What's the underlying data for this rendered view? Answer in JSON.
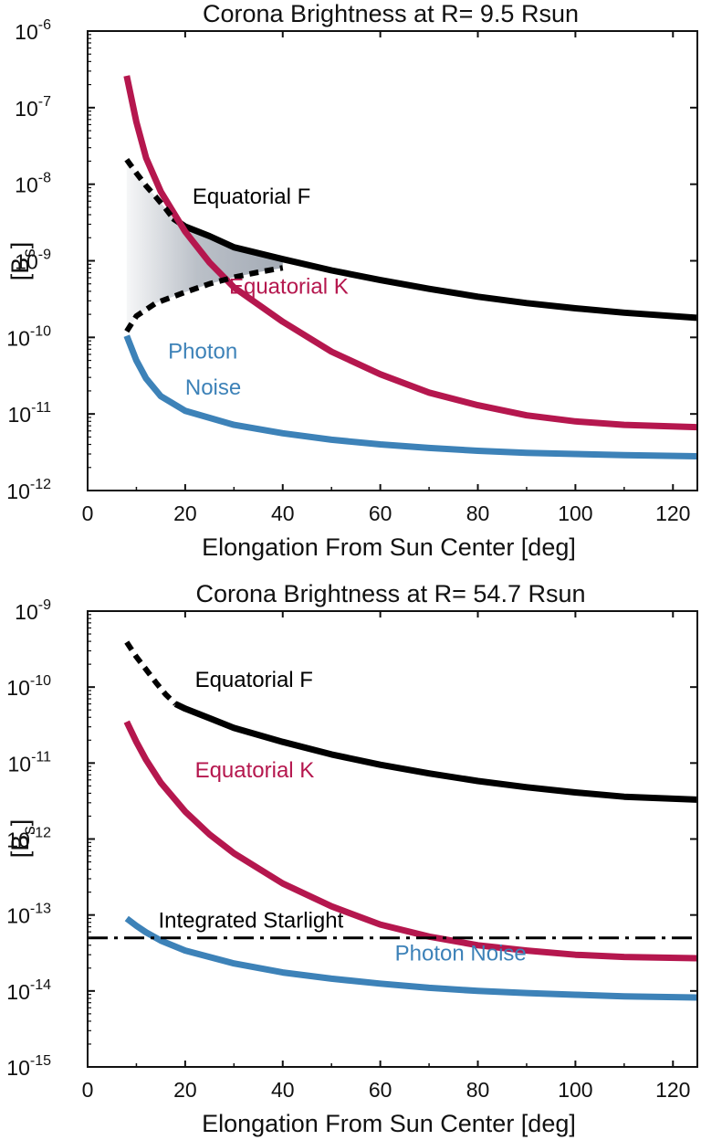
{
  "chart_data": [
    {
      "type": "line",
      "title": "Corona Brightness at R= 9.5 Rsun",
      "xlabel": "Elongation From Sun Center [deg]",
      "ylabel_main": "[B",
      "ylabel_sub": "s",
      "ylabel_close": "]",
      "xlim": [
        0,
        125
      ],
      "ylim_log10": [
        -12,
        -6
      ],
      "yscale": "log",
      "grid": false,
      "x_ticks": [
        "0",
        "20",
        "40",
        "60",
        "80",
        "100",
        "120"
      ],
      "y_tick_base": "10",
      "y_tick_exponents": [
        "-12",
        "-11",
        "-10",
        "-9",
        "-8",
        "-7",
        "-6"
      ],
      "series": [
        {
          "name": "Equatorial F",
          "color": "#000000",
          "style": "solid",
          "points": [
            [
              17.5,
              3.6e-09
            ],
            [
              20,
              2.8e-09
            ],
            [
              25,
              2.1e-09
            ],
            [
              30,
              1.5e-09
            ],
            [
              40,
              1.05e-09
            ],
            [
              50,
              7.5e-10
            ],
            [
              60,
              5.6e-10
            ],
            [
              70,
              4.3e-10
            ],
            [
              80,
              3.4e-10
            ],
            [
              90,
              2.8e-10
            ],
            [
              100,
              2.4e-10
            ],
            [
              110,
              2.1e-10
            ],
            [
              125,
              1.8e-10
            ]
          ]
        },
        {
          "name": "Equatorial K",
          "color": "#b5174e",
          "style": "solid",
          "points": [
            [
              8,
              2.6e-07
            ],
            [
              10,
              6.5e-08
            ],
            [
              12,
              2.2e-08
            ],
            [
              15,
              8e-09
            ],
            [
              20,
              2.4e-09
            ],
            [
              25,
              9.5e-10
            ],
            [
              30,
              4.5e-10
            ],
            [
              40,
              1.6e-10
            ],
            [
              50,
              6.5e-11
            ],
            [
              60,
              3.3e-11
            ],
            [
              70,
              1.9e-11
            ],
            [
              80,
              1.3e-11
            ],
            [
              90,
              9.6e-12
            ],
            [
              100,
              8e-12
            ],
            [
              110,
              7.2e-12
            ],
            [
              125,
              6.7e-12
            ]
          ]
        },
        {
          "name": "Photon Noise",
          "color": "#3d82b8",
          "style": "solid",
          "points": [
            [
              8,
              1.05e-10
            ],
            [
              10,
              5e-11
            ],
            [
              12,
              2.9e-11
            ],
            [
              15,
              1.7e-11
            ],
            [
              20,
              1.1e-11
            ],
            [
              30,
              7.2e-12
            ],
            [
              40,
              5.6e-12
            ],
            [
              50,
              4.6e-12
            ],
            [
              60,
              4e-12
            ],
            [
              70,
              3.6e-12
            ],
            [
              80,
              3.3e-12
            ],
            [
              90,
              3.1e-12
            ],
            [
              100,
              3e-12
            ],
            [
              110,
              2.9e-12
            ],
            [
              125,
              2.8e-12
            ]
          ]
        },
        {
          "name": "",
          "color": "#000000",
          "style": "dashed",
          "points": [
            [
              8,
              2.1e-08
            ],
            [
              10,
              1.4e-08
            ],
            [
              12,
              9.5e-09
            ],
            [
              14,
              6.8e-09
            ],
            [
              16,
              4.8e-09
            ],
            [
              17.5,
              3.6e-09
            ]
          ]
        },
        {
          "name": "",
          "color": "#000000",
          "style": "dashed",
          "points": [
            [
              8,
              1.2e-10
            ],
            [
              10,
              1.9e-10
            ],
            [
              14,
              2.8e-10
            ],
            [
              20,
              3.9e-10
            ],
            [
              25,
              5e-10
            ],
            [
              30,
              6.1e-10
            ],
            [
              35,
              7.1e-10
            ],
            [
              40,
              8.1e-10
            ]
          ]
        }
      ],
      "annotations": [
        {
          "text": "Equatorial F",
          "x": 21.5,
          "y": 5.6e-09,
          "color": "#000000"
        },
        {
          "text": "Equatorial K",
          "x": 29,
          "y": 3.7e-10,
          "color": "#b5174e"
        },
        {
          "text": "Photon",
          "x": 16.5,
          "y": 5.3e-11,
          "color": "#3d82b8"
        },
        {
          "text": "Noise",
          "x": 20,
          "y": 1.8e-11,
          "color": "#3d82b8"
        }
      ]
    },
    {
      "type": "line",
      "title": "Corona Brightness at R= 54.7 Rsun",
      "xlabel": "Elongation From Sun Center [deg]",
      "ylabel_main": "[B",
      "ylabel_sub": "s",
      "ylabel_close": "]",
      "xlim": [
        0,
        125
      ],
      "ylim_log10": [
        -15,
        -9
      ],
      "yscale": "log",
      "grid": false,
      "x_ticks": [
        "0",
        "20",
        "40",
        "60",
        "80",
        "100",
        "120"
      ],
      "y_tick_base": "10",
      "y_tick_exponents": [
        "-15",
        "-14",
        "-13",
        "-12",
        "-11",
        "-10",
        "-9"
      ],
      "series": [
        {
          "name": "Equatorial F",
          "color": "#000000",
          "style": "solid",
          "points": [
            [
              18,
              6e-11
            ],
            [
              20,
              5.2e-11
            ],
            [
              25,
              3.9e-11
            ],
            [
              30,
              2.9e-11
            ],
            [
              40,
              1.9e-11
            ],
            [
              50,
              1.3e-11
            ],
            [
              60,
              9.5e-12
            ],
            [
              70,
              7.3e-12
            ],
            [
              80,
              5.8e-12
            ],
            [
              90,
              4.8e-12
            ],
            [
              100,
              4.1e-12
            ],
            [
              110,
              3.6e-12
            ],
            [
              125,
              3.3e-12
            ]
          ]
        },
        {
          "name": "Equatorial K",
          "color": "#b5174e",
          "style": "solid",
          "points": [
            [
              8,
              3.5e-11
            ],
            [
              10,
              1.9e-11
            ],
            [
              12,
              1.1e-11
            ],
            [
              15,
              5.5e-12
            ],
            [
              20,
              2.3e-12
            ],
            [
              25,
              1.15e-12
            ],
            [
              30,
              6.5e-13
            ],
            [
              40,
              2.6e-13
            ],
            [
              50,
              1.3e-13
            ],
            [
              60,
              7.5e-14
            ],
            [
              70,
              5.2e-14
            ],
            [
              80,
              4e-14
            ],
            [
              90,
              3.4e-14
            ],
            [
              100,
              3e-14
            ],
            [
              110,
              2.8e-14
            ],
            [
              125,
              2.7e-14
            ]
          ]
        },
        {
          "name": "Photon Noise",
          "color": "#3d82b8",
          "style": "solid",
          "points": [
            [
              8,
              9e-14
            ],
            [
              10,
              7.2e-14
            ],
            [
              12,
              5.9e-14
            ],
            [
              15,
              4.6e-14
            ],
            [
              20,
              3.4e-14
            ],
            [
              30,
              2.3e-14
            ],
            [
              40,
              1.75e-14
            ],
            [
              50,
              1.45e-14
            ],
            [
              60,
              1.25e-14
            ],
            [
              70,
              1.1e-14
            ],
            [
              80,
              1e-14
            ],
            [
              90,
              9.4e-15
            ],
            [
              100,
              8.9e-15
            ],
            [
              110,
              8.5e-15
            ],
            [
              125,
              8.2e-15
            ]
          ]
        },
        {
          "name": "",
          "color": "#000000",
          "style": "dashed",
          "points": [
            [
              8,
              3.9e-10
            ],
            [
              10,
              2.5e-10
            ],
            [
              12,
              1.7e-10
            ],
            [
              14,
              1.15e-10
            ],
            [
              16,
              8e-11
            ],
            [
              18,
              6e-11
            ]
          ]
        },
        {
          "name": "Integrated Starlight",
          "color": "#000000",
          "style": "dashdot",
          "points": [
            [
              0,
              5e-14
            ],
            [
              125,
              5e-14
            ]
          ]
        }
      ],
      "annotations": [
        {
          "text": "Equatorial F",
          "x": 22,
          "y": 1e-10,
          "color": "#000000"
        },
        {
          "text": "Equatorial K",
          "x": 22,
          "y": 6.5e-12,
          "color": "#b5174e"
        },
        {
          "text": "Integrated Starlight",
          "x": 14.5,
          "y": 6.8e-14,
          "color": "#000000"
        },
        {
          "text": "Photon Noise",
          "x": 63,
          "y": 2.5e-14,
          "color": "#3d82b8"
        }
      ]
    }
  ]
}
